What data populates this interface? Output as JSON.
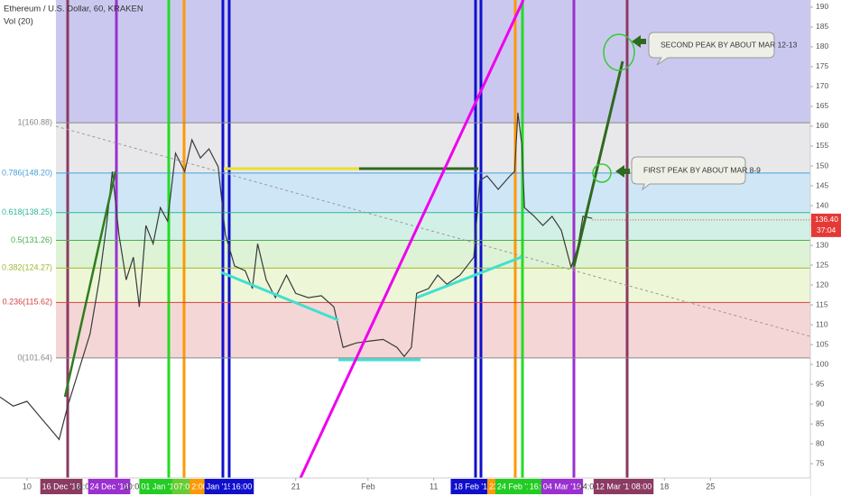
{
  "header": {
    "title": "Ethereum / U.S. Dollar, 60, KRAKEN",
    "indicator": "Vol (20)"
  },
  "chart_data": {
    "type": "line",
    "color": "#3a3a3a",
    "x": [
      6.0,
      8.0,
      10.1,
      12.1,
      14.2,
      15.0,
      16.3,
      18.0,
      19.7,
      21.1,
      22.2,
      23.1,
      24.1,
      25.2,
      26.3,
      27.2,
      28.2,
      29.3,
      30.4,
      31.5,
      32.7,
      34.1,
      35.2,
      36.5,
      37.8,
      39.2,
      40.3,
      41.7,
      43.3,
      44.4,
      45.2,
      46.5,
      47.9,
      49.6,
      51.0,
      52.9,
      54.9,
      56.8,
      58.2,
      60.2,
      62.3,
      64.3,
      66.4,
      67.5,
      68.6,
      69.4,
      71.2,
      72.6,
      74.0,
      76.0,
      78.1,
      79.0,
      80.1,
      81.8,
      83.6,
      84.3,
      84.8,
      85.4,
      85.8,
      87.3,
      88.6,
      90.0,
      91.4,
      92.9,
      93.9,
      94.7,
      96.1
    ],
    "values": [
      91.8,
      89.5,
      90.7,
      86.8,
      82.7,
      81.1,
      89.5,
      98.6,
      107.7,
      121.3,
      135.0,
      148.6,
      132.7,
      121.3,
      127.0,
      114.5,
      135.0,
      130.4,
      139.5,
      136.1,
      153.2,
      148.6,
      156.6,
      152.0,
      154.3,
      149.8,
      132.7,
      124.8,
      123.6,
      119.1,
      130.4,
      121.3,
      116.8,
      122.5,
      117.9,
      116.8,
      117.3,
      114.5,
      104.3,
      105.4,
      105.9,
      106.3,
      104.3,
      102.0,
      104.3,
      117.9,
      119.1,
      122.5,
      120.2,
      122.5,
      127.0,
      146.3,
      147.5,
      144.1,
      147.5,
      148.6,
      163.4,
      155.4,
      139.5,
      137.3,
      135.0,
      137.3,
      133.8,
      124.5,
      129.3,
      137.3,
      136.8
    ],
    "xlim": [
      6.0,
      129.3
    ],
    "ylim": [
      71.4,
      191.8
    ],
    "xticks": [
      {
        "value": 10.1,
        "label": "10"
      },
      {
        "value": 51.0,
        "label": "21"
      },
      {
        "value": 62.0,
        "label": "Feb"
      },
      {
        "value": 72.0,
        "label": "11"
      },
      {
        "value": 107.1,
        "label": "18"
      },
      {
        "value": 114.1,
        "label": "25"
      }
    ],
    "yticks": [
      75,
      80,
      85,
      90,
      95,
      100,
      105,
      110,
      115,
      120,
      125,
      130,
      135,
      140,
      145,
      150,
      155,
      160,
      165,
      170,
      175,
      180,
      185,
      190
    ],
    "background_color": "#cbc8f0",
    "fib_levels": [
      {
        "value": 160.88,
        "label": "1(160.88)",
        "color": "#888888",
        "fill": "#e8e8ea"
      },
      {
        "value": 148.2,
        "label": "0.786(148.20)",
        "color": "#4a9fd8",
        "fill": "#cfe6f6"
      },
      {
        "value": 138.25,
        "label": "0.618(138.25)",
        "color": "#2cb89a",
        "fill": "#d3f0e6"
      },
      {
        "value": 131.26,
        "label": "0.5(131.26)",
        "color": "#4cae4c",
        "fill": "#def2d6"
      },
      {
        "value": 124.27,
        "label": "0.382(124.27)",
        "color": "#9aba30",
        "fill": "#eef6d8"
      },
      {
        "value": 115.62,
        "label": "0.236(115.62)",
        "color": "#d84040",
        "fill": "#f5d6d6"
      },
      {
        "value": 101.64,
        "label": "0(101.64)",
        "color": "#888888",
        "fill": "#ffffff"
      }
    ],
    "last_price": 136.4,
    "last_price_label": "136.40",
    "countdown": "37:04"
  },
  "marker_labels": [
    "16 Dec '18",
    "16:00",
    "24 Dec '18",
    "10:00",
    "01 Jan '19",
    "07:00",
    "2:00",
    "Jan '19",
    "16:00",
    "1",
    "18 Feb '19",
    "23",
    "24 Feb '19",
    "16:00",
    "04 Mar '19",
    "04:00",
    "12 Mar '19",
    "08:00"
  ],
  "annotations": [
    "SECOND PEAK BY ABOUT MAR 12-13",
    "FIRST PEAK BY ABOUT MAR 8-9"
  ]
}
